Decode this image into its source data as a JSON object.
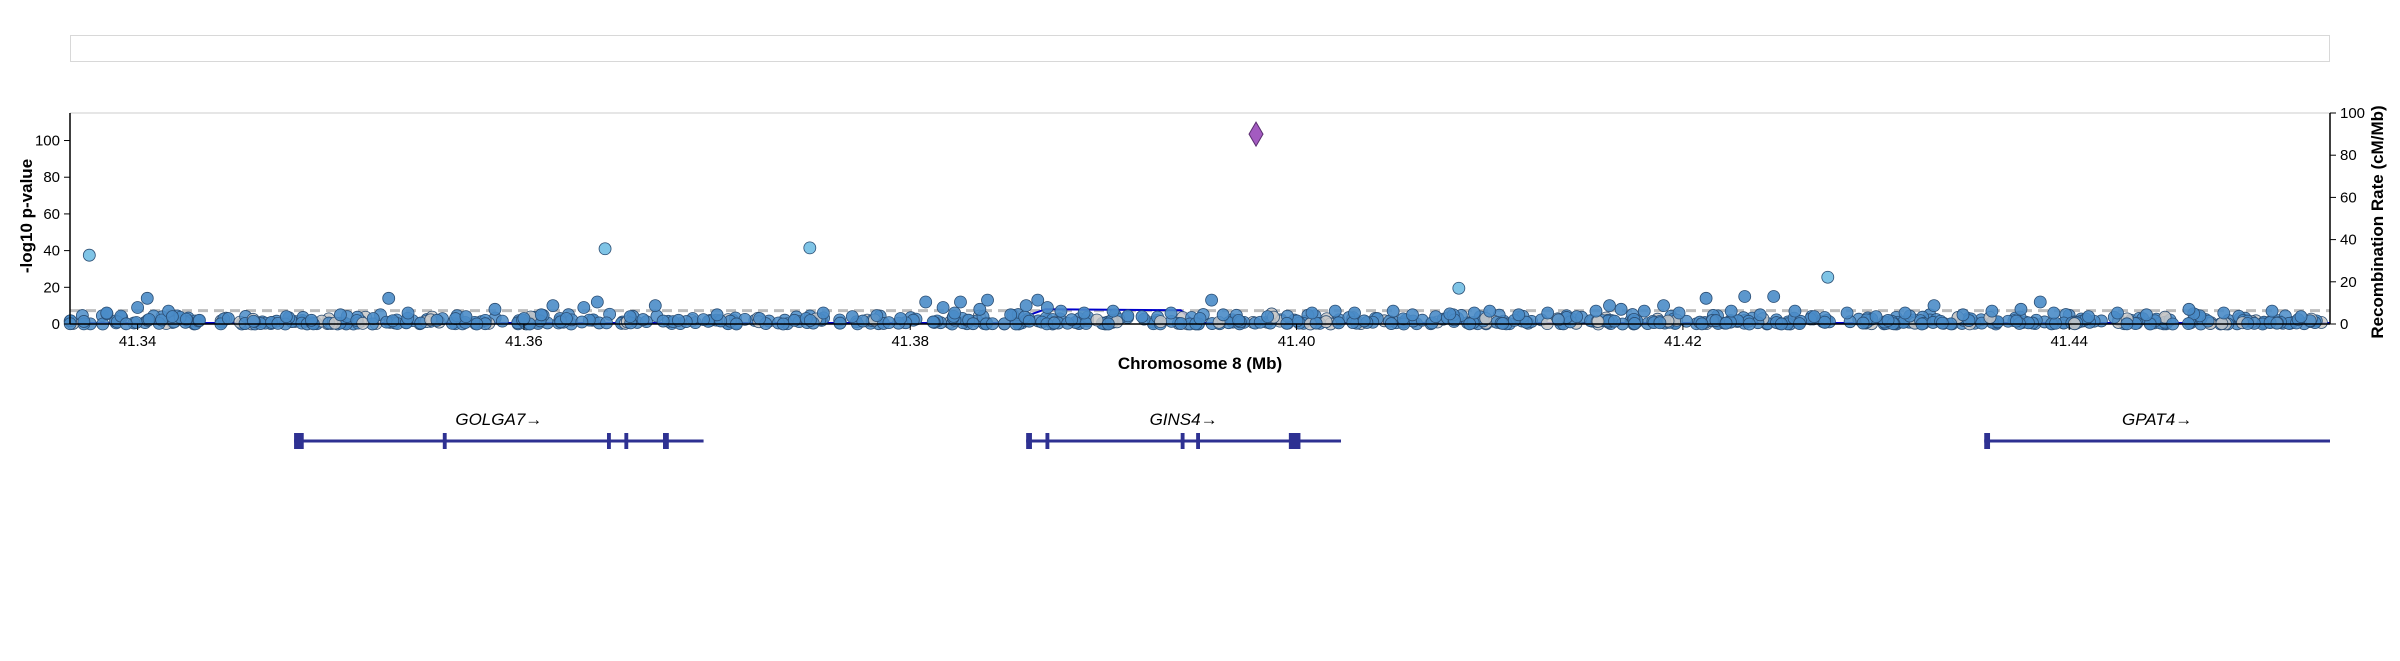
{
  "toolbar": {},
  "colors": {
    "point_fill": "#4a8cc8",
    "point_fill_light": "#7fc4e6",
    "point_grey": "#c8c8c8",
    "lead_variant": "#a35bc0",
    "recomb_line": "#0000cc",
    "gene": "#2e3192",
    "threshold": "#bdbdbd"
  },
  "chart_data": {
    "type": "scatter",
    "title": "",
    "xlabel": "Chromosome 8 (Mb)",
    "ylabel": "-log10 p-value",
    "y2label": "Recombination Rate (cM/Mb)",
    "xlim": [
      41.3365,
      41.4535
    ],
    "ylim": [
      0,
      115
    ],
    "y2lim": [
      0,
      100
    ],
    "x_ticks": [
      41.34,
      41.36,
      41.38,
      41.4,
      41.42,
      41.44
    ],
    "x_tick_labels": [
      "41.34",
      "41.36",
      "41.38",
      "41.40",
      "41.42",
      "41.44"
    ],
    "y_ticks": [
      0,
      20,
      40,
      60,
      80,
      100
    ],
    "y_tick_labels": [
      "0",
      "20",
      "40",
      "60",
      "80",
      "100"
    ],
    "y2_ticks": [
      0,
      20,
      40,
      60,
      80,
      100
    ],
    "y2_tick_labels": [
      "0",
      "20",
      "40",
      "60",
      "80",
      "100"
    ],
    "threshold": 7.3,
    "lead_variant": {
      "x": 41.3979,
      "y": 103.5
    },
    "highlighted_points": [
      {
        "x": 41.3375,
        "y": 37.5
      },
      {
        "x": 41.3642,
        "y": 41
      },
      {
        "x": 41.3748,
        "y": 41.5
      },
      {
        "x": 41.4275,
        "y": 25.5
      },
      {
        "x": 41.4084,
        "y": 19.5
      }
    ],
    "points": [
      {
        "x": 41.3384,
        "y": 6
      },
      {
        "x": 41.3405,
        "y": 14
      },
      {
        "x": 41.34,
        "y": 9
      },
      {
        "x": 41.3416,
        "y": 7
      },
      {
        "x": 41.3418,
        "y": 4
      },
      {
        "x": 41.3432,
        "y": 2
      },
      {
        "x": 41.3447,
        "y": 3
      },
      {
        "x": 41.346,
        "y": 1.5
      },
      {
        "x": 41.3477,
        "y": 4
      },
      {
        "x": 41.349,
        "y": 2
      },
      {
        "x": 41.3505,
        "y": 5
      },
      {
        "x": 41.3522,
        "y": 3
      },
      {
        "x": 41.353,
        "y": 14
      },
      {
        "x": 41.354,
        "y": 6
      },
      {
        "x": 41.3555,
        "y": 2
      },
      {
        "x": 41.357,
        "y": 4
      },
      {
        "x": 41.3585,
        "y": 8
      },
      {
        "x": 41.36,
        "y": 3
      },
      {
        "x": 41.3609,
        "y": 5
      },
      {
        "x": 41.3615,
        "y": 10
      },
      {
        "x": 41.3631,
        "y": 9
      },
      {
        "x": 41.3638,
        "y": 12
      },
      {
        "x": 41.3622,
        "y": 3
      },
      {
        "x": 41.3655,
        "y": 4
      },
      {
        "x": 41.3668,
        "y": 10
      },
      {
        "x": 41.368,
        "y": 2
      },
      {
        "x": 41.37,
        "y": 5
      },
      {
        "x": 41.3722,
        "y": 3
      },
      {
        "x": 41.374,
        "y": 2
      },
      {
        "x": 41.3755,
        "y": 6
      },
      {
        "x": 41.377,
        "y": 4
      },
      {
        "x": 41.3795,
        "y": 3
      },
      {
        "x": 41.3808,
        "y": 12
      },
      {
        "x": 41.3817,
        "y": 9
      },
      {
        "x": 41.3823,
        "y": 6
      },
      {
        "x": 41.3826,
        "y": 12
      },
      {
        "x": 41.3836,
        "y": 8
      },
      {
        "x": 41.384,
        "y": 13
      },
      {
        "x": 41.3852,
        "y": 5
      },
      {
        "x": 41.386,
        "y": 10
      },
      {
        "x": 41.3866,
        "y": 13
      },
      {
        "x": 41.3871,
        "y": 9
      },
      {
        "x": 41.3878,
        "y": 7
      },
      {
        "x": 41.389,
        "y": 6
      },
      {
        "x": 41.3905,
        "y": 7
      },
      {
        "x": 41.392,
        "y": 4
      },
      {
        "x": 41.3935,
        "y": 6
      },
      {
        "x": 41.395,
        "y": 3
      },
      {
        "x": 41.3956,
        "y": 13
      },
      {
        "x": 41.3962,
        "y": 5
      },
      {
        "x": 41.3985,
        "y": 4
      },
      {
        "x": 41.4008,
        "y": 6
      },
      {
        "x": 41.402,
        "y": 7
      },
      {
        "x": 41.403,
        "y": 6
      },
      {
        "x": 41.405,
        "y": 7
      },
      {
        "x": 41.406,
        "y": 5
      },
      {
        "x": 41.4072,
        "y": 4
      },
      {
        "x": 41.4092,
        "y": 6
      },
      {
        "x": 41.41,
        "y": 7
      },
      {
        "x": 41.4115,
        "y": 5
      },
      {
        "x": 41.413,
        "y": 6
      },
      {
        "x": 41.4145,
        "y": 4
      },
      {
        "x": 41.4155,
        "y": 7
      },
      {
        "x": 41.4162,
        "y": 10
      },
      {
        "x": 41.4168,
        "y": 8
      },
      {
        "x": 41.418,
        "y": 7
      },
      {
        "x": 41.419,
        "y": 10
      },
      {
        "x": 41.4198,
        "y": 6
      },
      {
        "x": 41.4212,
        "y": 14
      },
      {
        "x": 41.4225,
        "y": 7
      },
      {
        "x": 41.4232,
        "y": 15
      },
      {
        "x": 41.424,
        "y": 5
      },
      {
        "x": 41.4247,
        "y": 15
      },
      {
        "x": 41.4258,
        "y": 7
      },
      {
        "x": 41.4268,
        "y": 4
      },
      {
        "x": 41.4285,
        "y": 6
      },
      {
        "x": 41.43,
        "y": 4
      },
      {
        "x": 41.4315,
        "y": 6
      },
      {
        "x": 41.433,
        "y": 10
      },
      {
        "x": 41.4345,
        "y": 5
      },
      {
        "x": 41.436,
        "y": 7
      },
      {
        "x": 41.4375,
        "y": 8
      },
      {
        "x": 41.4385,
        "y": 12
      },
      {
        "x": 41.4392,
        "y": 6
      },
      {
        "x": 41.441,
        "y": 4
      },
      {
        "x": 41.4425,
        "y": 6
      },
      {
        "x": 41.444,
        "y": 5
      },
      {
        "x": 41.4462,
        "y": 8
      },
      {
        "x": 41.448,
        "y": 6
      },
      {
        "x": 41.4505,
        "y": 7
      },
      {
        "x": 41.452,
        "y": 4
      }
    ],
    "recombination": {
      "x": [
        41.3365,
        41.385,
        41.387,
        41.394,
        41.3948,
        41.4535
      ],
      "y": [
        0.5,
        0.5,
        7,
        6.5,
        0.5,
        0.5
      ]
    },
    "genes": [
      {
        "name": "GOLGA7→",
        "start": 41.3481,
        "end": 41.3693,
        "exons": [
          [
            41.3481,
            41.3486
          ],
          [
            41.3558,
            41.356
          ],
          [
            41.3643,
            41.3645
          ],
          [
            41.3652,
            41.3654
          ],
          [
            41.3672,
            41.3675
          ]
        ]
      },
      {
        "name": "GINS4→",
        "start": 41.386,
        "end": 41.4023,
        "exons": [
          [
            41.386,
            41.3863
          ],
          [
            41.387,
            41.3872
          ],
          [
            41.394,
            41.3942
          ],
          [
            41.3948,
            41.395
          ],
          [
            41.3996,
            41.4002
          ]
        ]
      },
      {
        "name": "GPAT4→",
        "start": 41.4356,
        "end": 41.4535,
        "exons": [
          [
            41.4356,
            41.4359
          ]
        ]
      }
    ]
  }
}
